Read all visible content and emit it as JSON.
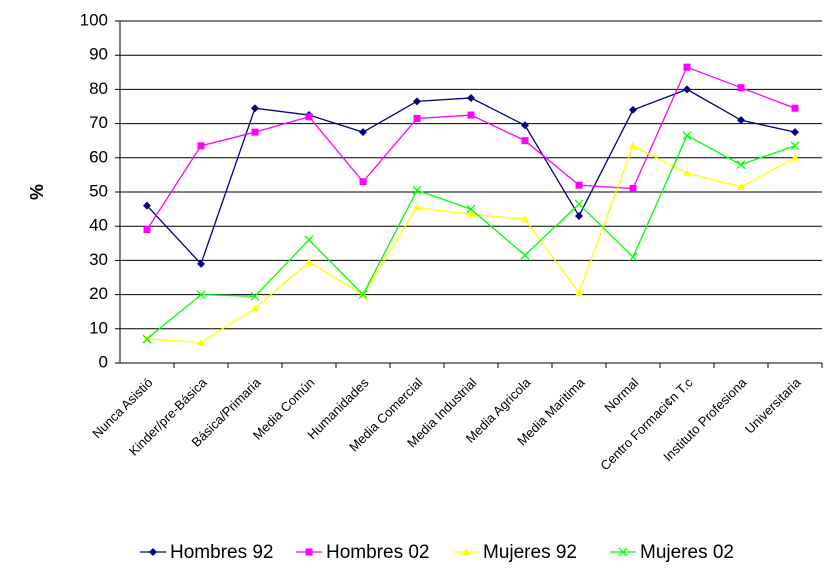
{
  "chart_data": {
    "type": "line",
    "y_label": "%",
    "categories": [
      "Nunca Asistió",
      "Kinder/pre-Básica",
      "Básica/Primaria",
      "Media Común",
      "Humanidades",
      "Media Comercial",
      "Media Industrial",
      "Media Agricola",
      "Media Maritima",
      "Normal",
      "Centro Formaci¢n T.c",
      "Instituto Profesiona",
      "Universitaria"
    ],
    "series": [
      {
        "name": "Hombres 92",
        "color": "#000080",
        "marker": "diamond",
        "values": [
          46,
          29,
          74.5,
          72.5,
          67.5,
          76.5,
          77.5,
          69.5,
          43,
          74,
          80,
          71,
          67.5
        ]
      },
      {
        "name": "Hombres 02",
        "color": "#ff00ff",
        "marker": "square",
        "values": [
          39,
          63.5,
          67.5,
          72,
          53,
          71.5,
          72.5,
          65,
          52,
          51,
          86.5,
          80.5,
          74.5
        ]
      },
      {
        "name": "Mujeres 92",
        "color": "#ffff00",
        "marker": "triangle",
        "values": [
          7,
          6,
          16,
          29.5,
          20,
          45.5,
          43.5,
          42,
          20.5,
          63.5,
          55.5,
          51.5,
          60
        ]
      },
      {
        "name": "Mujeres 02",
        "color": "#00ff00",
        "marker": "x",
        "values": [
          7,
          20,
          19.5,
          36,
          20,
          50.5,
          45,
          31.5,
          46.5,
          31,
          66.5,
          58,
          63.5
        ]
      }
    ],
    "ylim": [
      0,
      100
    ],
    "yticks": [
      0,
      10,
      20,
      30,
      40,
      50,
      60,
      70,
      80,
      90,
      100
    ],
    "grid": true,
    "legend": "bottom"
  }
}
